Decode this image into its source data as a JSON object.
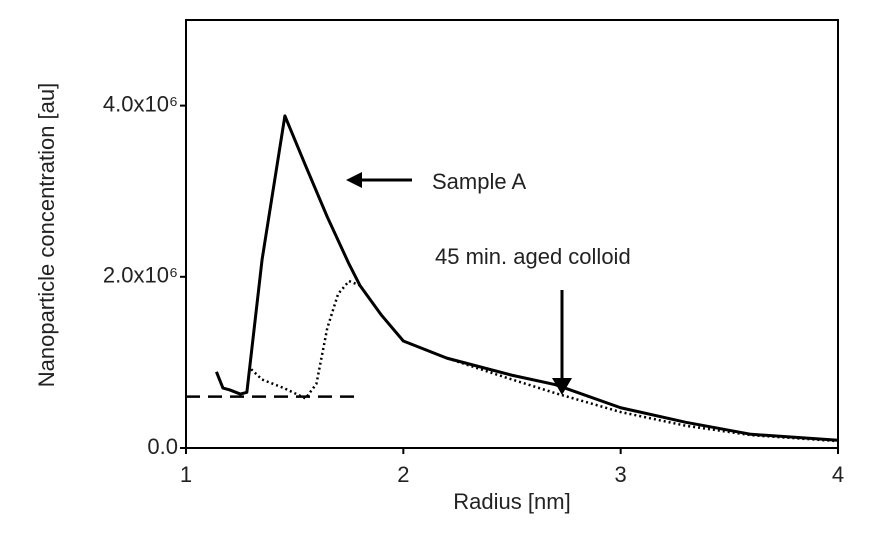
{
  "chart_data": {
    "type": "line",
    "xlabel": "Radius [nm]",
    "ylabel": "Nanoparticle concentration [au]",
    "xlim": [
      1,
      4
    ],
    "xticks": [
      1,
      2,
      3,
      4
    ],
    "ylim": [
      0,
      5000000
    ],
    "yticks": [
      {
        "value": 0,
        "label": "0.0"
      },
      {
        "value": 2000000,
        "label": "2.0x10⁶"
      },
      {
        "value": 4000000,
        "label": "4.0x10⁶"
      }
    ],
    "grid": false,
    "series": [
      {
        "color": "#000000",
        "style": "solid",
        "x": [
          1.14,
          1.17,
          1.2,
          1.25,
          1.28,
          1.35,
          1.455,
          1.55,
          1.65,
          1.75,
          1.8,
          1.9,
          2.0,
          2.2,
          2.5,
          2.7,
          3.0,
          3.3,
          3.6,
          4.0
        ],
        "values": [
          890000,
          700000,
          680000,
          630000,
          650000,
          2200000,
          3880000,
          3300000,
          2700000,
          2150000,
          1900000,
          1550000,
          1250000,
          1050000,
          850000,
          740000,
          470000,
          300000,
          160000,
          90000
        ]
      },
      {
        "color": "#000000",
        "style": "dotted",
        "x": [
          1.3,
          1.35,
          1.45,
          1.55,
          1.6,
          1.65,
          1.7,
          1.75,
          1.8,
          1.9,
          2.0,
          2.2,
          2.5,
          2.7,
          3.0,
          3.3,
          3.6,
          4.0
        ],
        "values": [
          920000,
          800000,
          700000,
          580000,
          750000,
          1400000,
          1800000,
          1950000,
          1900000,
          1550000,
          1250000,
          1050000,
          800000,
          640000,
          420000,
          260000,
          150000,
          80000
        ]
      },
      {
        "color": "#000000",
        "style": "dashed",
        "x": [
          1.0,
          1.8
        ],
        "values": [
          600000,
          600000
        ]
      }
    ],
    "annotations": [
      "Sample A",
      "45 min. aged colloid"
    ]
  }
}
